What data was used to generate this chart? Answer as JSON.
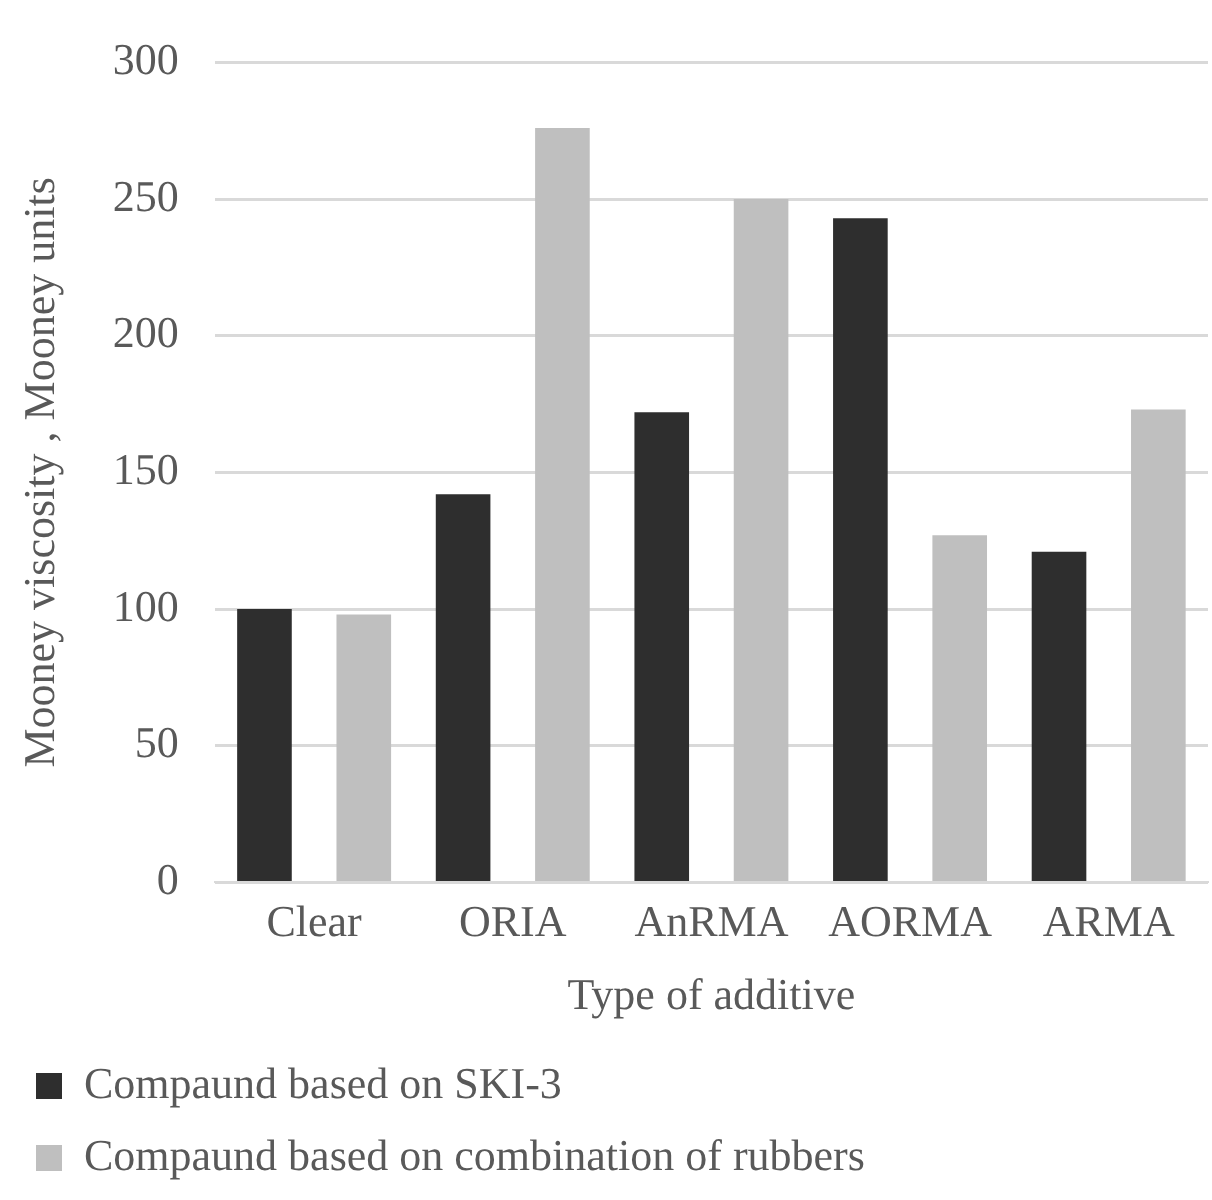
{
  "chart_data": {
    "type": "bar",
    "xlabel": "Type of additive",
    "ylabel": "Mooney viscosity , Mooney units",
    "categories": [
      "Clear",
      "ORIA",
      "AnRMA",
      "AORMA",
      "ARMA"
    ],
    "series": [
      {
        "name": "Compaund based on SKI-3",
        "color": "#2e2e2e",
        "values": [
          100,
          142,
          172,
          243,
          121
        ]
      },
      {
        "name": "Compaund based on combination of rubbers",
        "color": "#bfbfbf",
        "values": [
          98,
          276,
          250,
          127,
          173
        ]
      }
    ],
    "ylim": [
      0,
      300
    ],
    "yticks": [
      0,
      50,
      100,
      150,
      200,
      250,
      300
    ],
    "grid": "y",
    "legend": "bottom"
  }
}
